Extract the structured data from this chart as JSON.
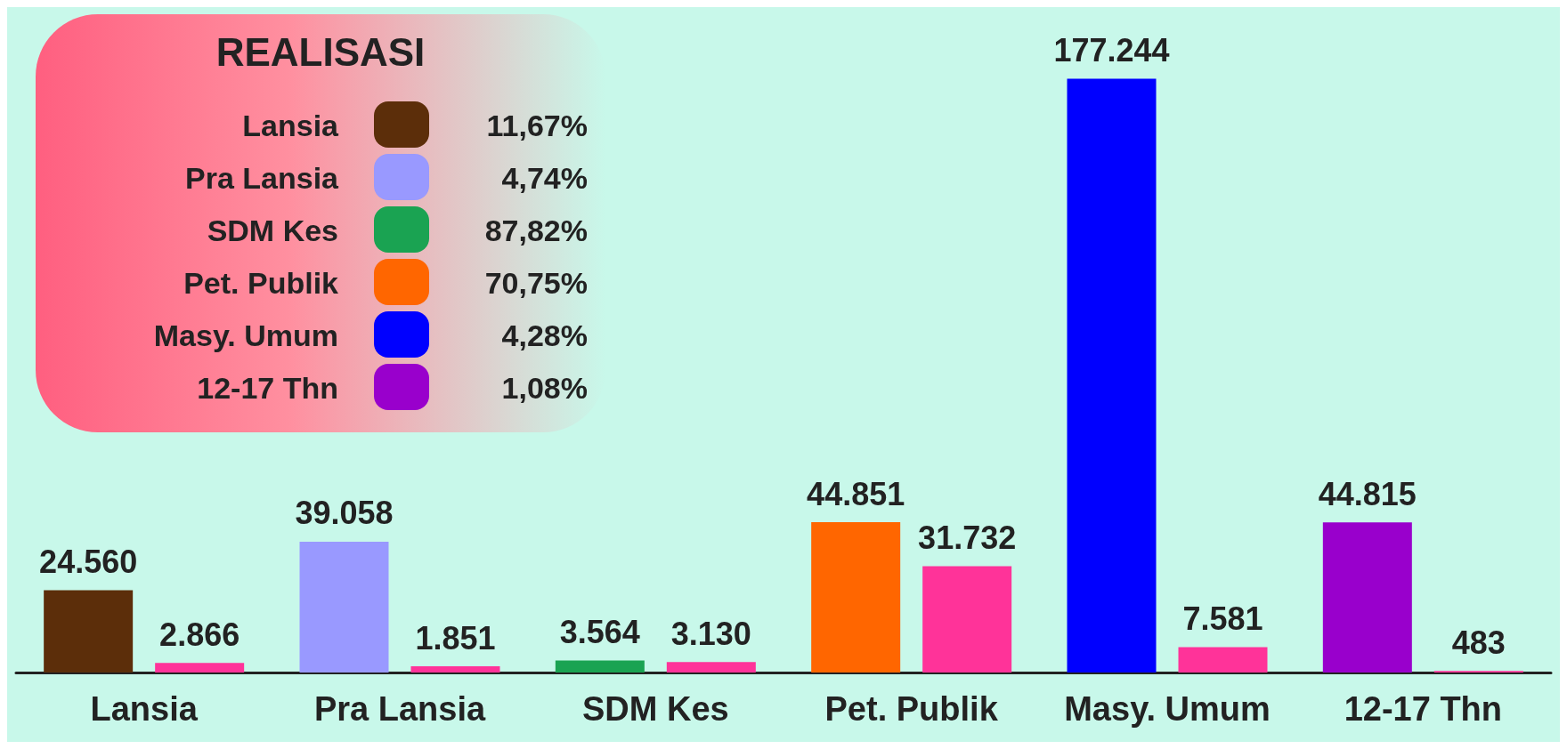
{
  "chart_data": {
    "type": "bar",
    "categories": [
      "Lansia",
      "Pra Lansia",
      "SDM Kes",
      "Pet. Publik",
      "Masy. Umum",
      "12-17 Thn"
    ],
    "series": [
      {
        "colors": [
          "#5c2e0a",
          "#9999ff",
          "#1aa352",
          "#ff6600",
          "#0000ff",
          "#9900cc"
        ],
        "values": [
          24560,
          39058,
          3564,
          44851,
          177244,
          44815
        ],
        "value_labels": [
          "24.560",
          "39.058",
          "3.564",
          "44.851",
          "177.244",
          "44.815"
        ]
      },
      {
        "color": "#ff3399",
        "values": [
          2866,
          1851,
          3130,
          31732,
          7581,
          483
        ],
        "value_labels": [
          "2.866",
          "1.851",
          "3.130",
          "31.732",
          "7.581",
          "483"
        ]
      }
    ],
    "annotations": [
      "REALISASI",
      "11,67%",
      "4,74%",
      "87,82%",
      "70,75%",
      "4,28%",
      "1,08%"
    ]
  }
}
